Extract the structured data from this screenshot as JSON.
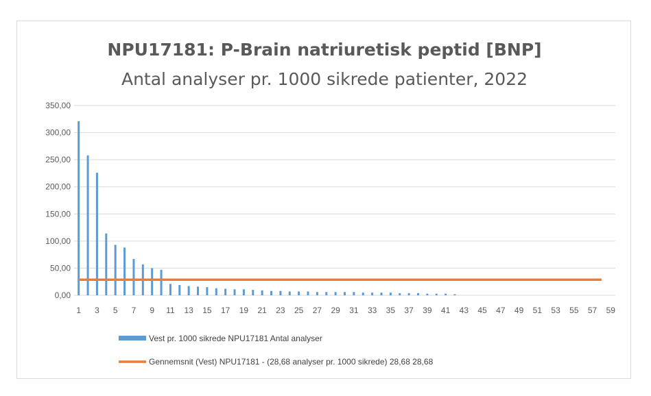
{
  "chart_data": {
    "type": "bar",
    "title": "NPU17181: P-Brain natriuretisk peptid [BNP]",
    "subtitle": "Antal analyser pr. 1000 sikrede patienter, 2022",
    "xlabel": "",
    "ylabel": "",
    "ylim": [
      0,
      350
    ],
    "y_ticks": [
      "0,00",
      "50,00",
      "100,00",
      "150,00",
      "200,00",
      "250,00",
      "300,00",
      "350,00"
    ],
    "x_tick_labels": [
      "1",
      "3",
      "5",
      "7",
      "9",
      "11",
      "13",
      "15",
      "17",
      "19",
      "21",
      "23",
      "25",
      "27",
      "29",
      "31",
      "33",
      "35",
      "37",
      "39",
      "41",
      "43",
      "45",
      "47",
      "49",
      "51",
      "53",
      "55",
      "57",
      "59"
    ],
    "grid": true,
    "legend_position": "bottom",
    "categories": [
      1,
      2,
      3,
      4,
      5,
      6,
      7,
      8,
      9,
      10,
      11,
      12,
      13,
      14,
      15,
      16,
      17,
      18,
      19,
      20,
      21,
      22,
      23,
      24,
      25,
      26,
      27,
      28,
      29,
      30,
      31,
      32,
      33,
      34,
      35,
      36,
      37,
      38,
      39,
      40,
      41,
      42,
      43,
      44,
      45,
      46,
      47,
      48,
      49,
      50,
      51,
      52,
      53,
      54,
      55,
      56,
      57,
      58,
      59
    ],
    "series": [
      {
        "name": "Vest pr. 1000 sikrede NPU17181 Antal analyser",
        "type": "bar",
        "color": "#5b9bd5",
        "values": [
          321,
          258,
          226,
          114,
          93,
          88,
          67,
          57,
          50,
          47,
          21,
          19,
          17,
          16,
          15,
          13,
          12,
          11,
          11,
          10,
          9,
          8,
          8,
          7,
          7,
          7,
          6,
          6,
          6,
          6,
          6,
          5,
          5,
          5,
          5,
          4,
          4,
          4,
          3,
          3,
          3,
          2,
          null,
          null,
          null,
          null,
          null,
          null,
          null,
          null,
          null,
          null,
          null,
          null,
          null,
          null,
          null,
          null,
          null
        ]
      },
      {
        "name": "Gennemsnit (Vest) NPU17181 - (28,68 analyser pr. 1000 sikrede) 28,68 28,68",
        "type": "line",
        "color": "#ed7d31",
        "value": 28.68,
        "x_range": [
          1,
          58
        ]
      }
    ]
  }
}
